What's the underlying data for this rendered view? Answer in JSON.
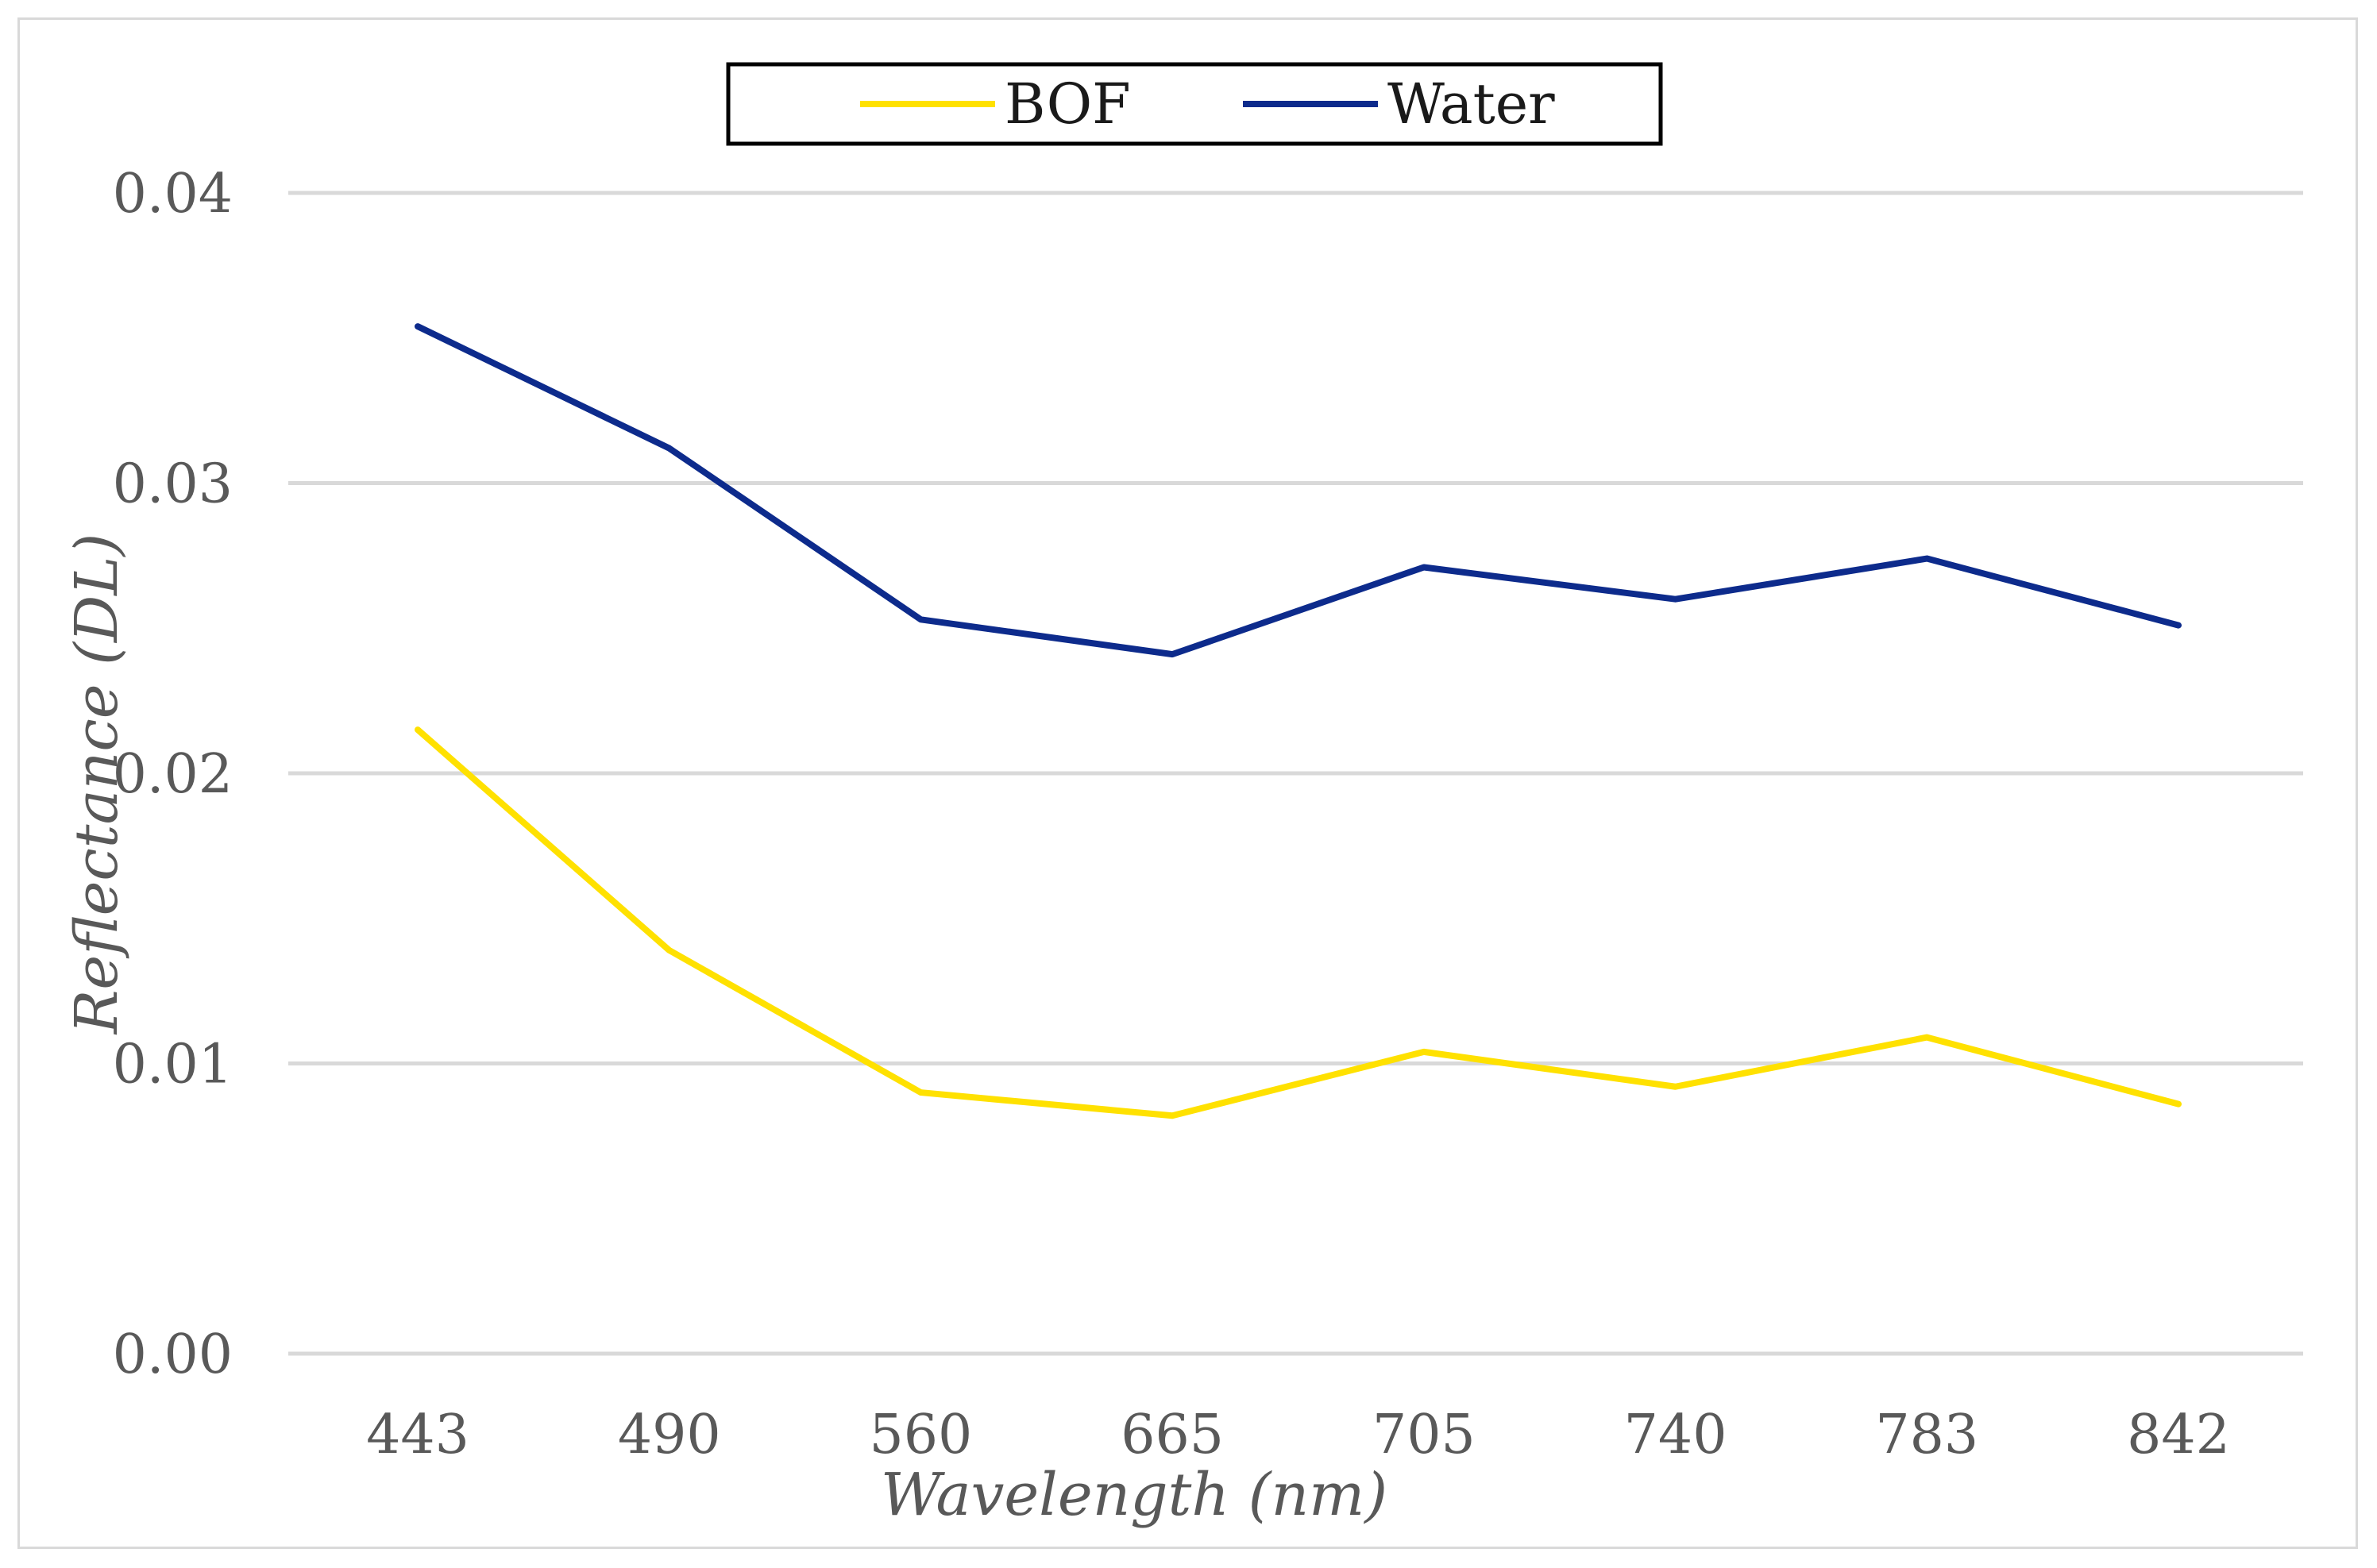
{
  "chart_data": {
    "type": "line",
    "title": "",
    "xlabel": "Wavelength (nm)",
    "ylabel": "Reflectance (DL)",
    "categories": [
      "443",
      "490",
      "560",
      "665",
      "705",
      "740",
      "783",
      "842"
    ],
    "y_tick_labels": [
      "0.00",
      "0.01",
      "0.02",
      "0.03",
      "0.04"
    ],
    "ylim": [
      0,
      0.04
    ],
    "grid": true,
    "legend_position": "top-center",
    "series": [
      {
        "name": "BOF",
        "color": "#ffe100",
        "values": [
          0.0215,
          0.0139,
          0.009,
          0.0082,
          0.0104,
          0.0092,
          0.0109,
          0.0086
        ]
      },
      {
        "name": "Water",
        "color": "#0d2b8c",
        "values": [
          0.0354,
          0.0312,
          0.0253,
          0.0241,
          0.0271,
          0.026,
          0.0274,
          0.0251
        ]
      }
    ]
  }
}
